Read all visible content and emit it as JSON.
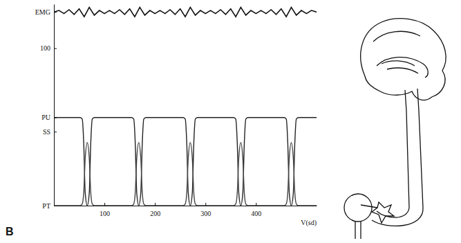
{
  "chart_data": {
    "type": "line",
    "panel_label": "B",
    "x_label": "V(sd)",
    "xlim": [
      0,
      520
    ],
    "xticks": [
      100,
      200,
      300,
      400
    ],
    "ylim": [
      0,
      128
    ],
    "yticks": [
      {
        "value": 123,
        "label": "EMG"
      },
      100,
      {
        "value": 56,
        "label": "PU"
      },
      {
        "value": 47,
        "label": "SS"
      },
      {
        "value": 0,
        "label": "PT"
      }
    ],
    "tick_labels": true,
    "grid": false,
    "x": [
      0,
      52,
      56,
      59,
      62,
      66,
      70,
      73,
      76,
      80,
      154,
      158,
      161,
      164,
      168,
      172,
      175,
      178,
      182,
      256,
      260,
      263,
      266,
      270,
      274,
      277,
      280,
      284,
      356,
      360,
      363,
      366,
      370,
      374,
      377,
      380,
      384,
      456,
      460,
      463,
      466,
      470,
      474,
      477,
      480,
      484,
      520
    ],
    "series": [
      {
        "color": "#111111",
        "line_style": "solid",
        "x": [
          0,
          10,
          20,
          30,
          40,
          50,
          60,
          70,
          80,
          90,
          100,
          110,
          120,
          130,
          140,
          150,
          160,
          170,
          180,
          190,
          200,
          210,
          220,
          230,
          240,
          250,
          260,
          270,
          280,
          290,
          300,
          310,
          320,
          330,
          340,
          350,
          360,
          370,
          380,
          390,
          400,
          410,
          420,
          430,
          440,
          450,
          460,
          470,
          480,
          490,
          500,
          510,
          520
        ],
        "values": [
          123,
          124,
          122,
          124.5,
          121.5,
          125,
          120,
          126,
          121,
          124,
          122,
          124,
          122,
          124.5,
          121.5,
          125,
          120,
          126,
          121,
          124,
          122,
          124,
          122,
          124.5,
          121.5,
          125,
          120,
          126,
          121,
          124,
          122,
          124,
          122,
          124.5,
          121.5,
          125,
          120,
          126,
          121,
          124,
          122,
          124,
          122,
          124.5,
          121.5,
          125,
          120,
          126,
          121,
          124,
          122,
          124,
          123
        ]
      },
      {
        "color": "#222222",
        "line_style": "solid",
        "values": [
          56,
          56,
          55,
          40,
          8,
          0,
          8,
          40,
          55,
          56,
          56,
          55,
          40,
          8,
          0,
          8,
          40,
          55,
          56,
          56,
          55,
          40,
          8,
          0,
          8,
          40,
          55,
          56,
          56,
          55,
          40,
          8,
          0,
          8,
          40,
          55,
          56,
          56,
          55,
          40,
          8,
          0,
          8,
          40,
          55,
          56,
          56
        ]
      },
      {
        "color": "#444444",
        "line_style": "solid",
        "values": [
          0,
          0,
          1,
          8,
          30,
          40,
          30,
          8,
          1,
          0,
          0,
          1,
          8,
          30,
          40,
          30,
          8,
          1,
          0,
          0,
          1,
          8,
          30,
          40,
          30,
          8,
          1,
          0,
          0,
          1,
          8,
          30,
          40,
          30,
          8,
          1,
          0,
          0,
          1,
          8,
          30,
          40,
          30,
          8,
          1,
          0,
          0
        ]
      }
    ]
  }
}
